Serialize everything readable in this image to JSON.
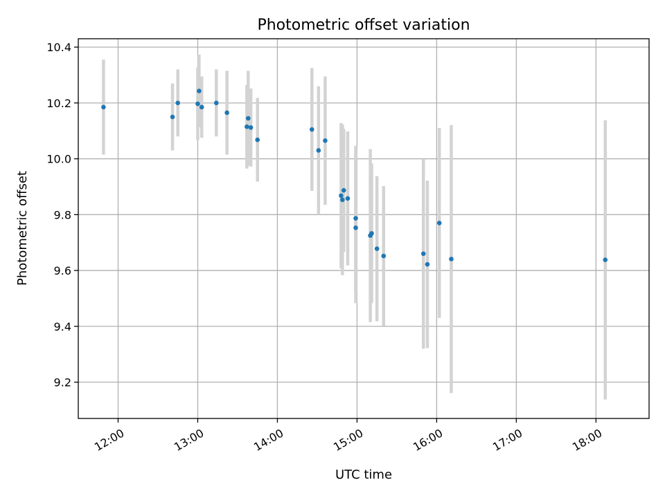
{
  "chart_data": {
    "type": "scatter",
    "title": "Photometric offset variation",
    "xlabel": "UTC time",
    "ylabel": "Photometric offset",
    "x_axis_type": "time",
    "xlim": [
      "11:30",
      "18:40"
    ],
    "ylim": [
      9.07,
      10.43
    ],
    "x_ticks": [
      "12:00",
      "13:00",
      "14:00",
      "15:00",
      "16:00",
      "17:00",
      "18:00"
    ],
    "y_ticks": [
      "9.2",
      "9.4",
      "9.6",
      "9.8",
      "10.0",
      "10.2",
      "10.4"
    ],
    "grid": true,
    "point_color": "#1f77b4",
    "errorbar_color": "#d3d3d3",
    "series": [
      {
        "points": [
          {
            "x": "11:49",
            "y": 10.185,
            "err": 0.17
          },
          {
            "x": "12:41",
            "y": 10.15,
            "err": 0.12
          },
          {
            "x": "12:45",
            "y": 10.2,
            "err": 0.12
          },
          {
            "x": "13:00",
            "y": 10.197,
            "err": 0.13
          },
          {
            "x": "13:01",
            "y": 10.243,
            "err": 0.13
          },
          {
            "x": "13:03",
            "y": 10.185,
            "err": 0.11
          },
          {
            "x": "13:14",
            "y": 10.2,
            "err": 0.12
          },
          {
            "x": "13:22",
            "y": 10.165,
            "err": 0.15
          },
          {
            "x": "13:37",
            "y": 10.115,
            "err": 0.15
          },
          {
            "x": "13:38",
            "y": 10.145,
            "err": 0.17
          },
          {
            "x": "13:40",
            "y": 10.112,
            "err": 0.14
          },
          {
            "x": "13:45",
            "y": 10.068,
            "err": 0.15
          },
          {
            "x": "14:26",
            "y": 10.105,
            "err": 0.22
          },
          {
            "x": "14:31",
            "y": 10.03,
            "err": 0.23
          },
          {
            "x": "14:36",
            "y": 10.065,
            "err": 0.23
          },
          {
            "x": "14:48",
            "y": 9.868,
            "err": 0.26
          },
          {
            "x": "14:49",
            "y": 9.853,
            "err": 0.27
          },
          {
            "x": "14:50",
            "y": 9.887,
            "err": 0.22
          },
          {
            "x": "14:53",
            "y": 9.858,
            "err": 0.24
          },
          {
            "x": "14:59",
            "y": 9.787,
            "err": 0.26
          },
          {
            "x": "14:59",
            "y": 9.753,
            "err": 0.27
          },
          {
            "x": "15:10",
            "y": 9.725,
            "err": 0.31
          },
          {
            "x": "15:11",
            "y": 9.733,
            "err": 0.25
          },
          {
            "x": "15:15",
            "y": 9.678,
            "err": 0.26
          },
          {
            "x": "15:20",
            "y": 9.652,
            "err": 0.25
          },
          {
            "x": "15:50",
            "y": 9.66,
            "err": 0.34
          },
          {
            "x": "15:53",
            "y": 9.622,
            "err": 0.3
          },
          {
            "x": "16:02",
            "y": 9.77,
            "err": 0.34
          },
          {
            "x": "16:11",
            "y": 9.641,
            "err": 0.48
          },
          {
            "x": "18:07",
            "y": 9.638,
            "err": 0.5
          }
        ]
      }
    ]
  }
}
